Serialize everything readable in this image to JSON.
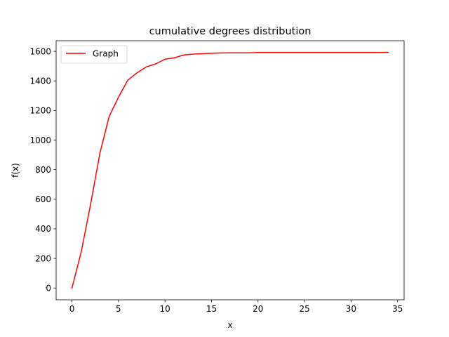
{
  "chart_data": {
    "type": "line",
    "title": "cumulative degrees distribution",
    "xlabel": "x",
    "ylabel": "f(x)",
    "xlim": [
      -1.7,
      35.7
    ],
    "ylim": [
      -79.6,
      1671.6
    ],
    "xticks": [
      0,
      5,
      10,
      15,
      20,
      25,
      30,
      35
    ],
    "yticks": [
      0,
      200,
      400,
      600,
      800,
      1000,
      1200,
      1400,
      1600
    ],
    "grid": false,
    "legend": {
      "placement": "top-left"
    },
    "series": [
      {
        "name": "Graph",
        "color": "#ff0000",
        "x": [
          0,
          1,
          2,
          3,
          4,
          5,
          6,
          7,
          8,
          9,
          10,
          11,
          12,
          13,
          14,
          15,
          16,
          17,
          18,
          19,
          20,
          21,
          22,
          23,
          24,
          25,
          26,
          27,
          28,
          29,
          30,
          31,
          32,
          33,
          34
        ],
        "y": [
          0,
          245,
          565,
          910,
          1160,
          1290,
          1405,
          1455,
          1495,
          1515,
          1547,
          1556,
          1575,
          1581,
          1584,
          1587,
          1589,
          1590,
          1590,
          1590,
          1592,
          1592,
          1592,
          1592,
          1592,
          1592,
          1592,
          1592,
          1592,
          1592,
          1592,
          1592,
          1592,
          1592,
          1593
        ]
      }
    ]
  }
}
